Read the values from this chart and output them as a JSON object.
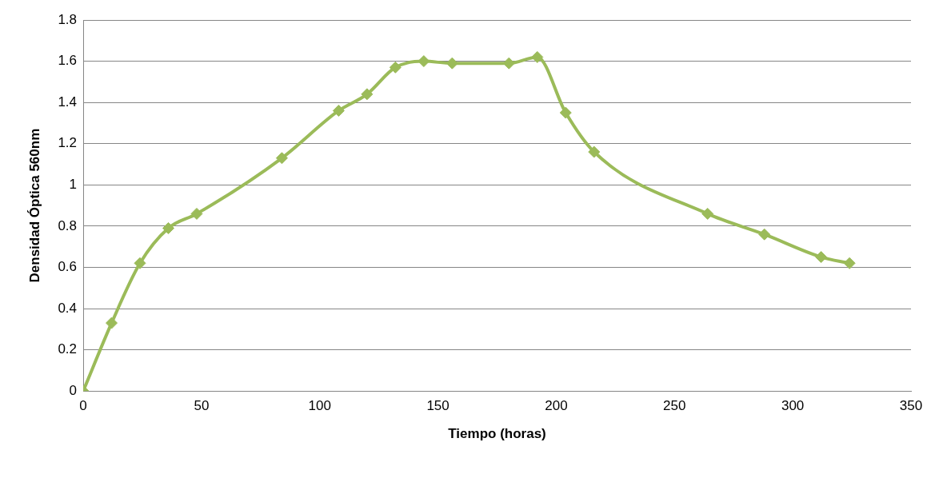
{
  "chart_data": {
    "type": "line",
    "xlabel": "Tiempo (horas)",
    "ylabel": "Densidad Óptica 560nm",
    "x": [
      0,
      12,
      24,
      36,
      48,
      84,
      108,
      120,
      132,
      144,
      156,
      180,
      192,
      204,
      216,
      264,
      288,
      312,
      324
    ],
    "series": [
      {
        "color": "#9bbb59",
        "values": [
          0,
          0.33,
          0.62,
          0.79,
          0.86,
          1.13,
          1.36,
          1.44,
          1.57,
          1.6,
          1.59,
          1.59,
          1.62,
          1.35,
          1.16,
          0.86,
          0.76,
          0.65,
          0.62
        ]
      }
    ],
    "xlim": [
      0,
      350
    ],
    "xticks": [
      0,
      50,
      100,
      150,
      200,
      250,
      300,
      350
    ],
    "ylim": [
      0,
      1.8
    ],
    "yticks": [
      0,
      0.2,
      0.4,
      0.6,
      0.8,
      1,
      1.2,
      1.4,
      1.6,
      1.8
    ],
    "grid": "y",
    "legend": false,
    "marker": "diamond",
    "line_style": "solid"
  }
}
